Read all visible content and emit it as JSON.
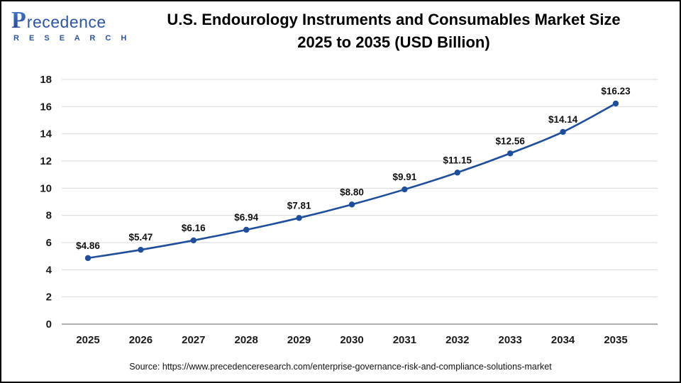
{
  "header": {
    "logo": {
      "p": "P",
      "rest": "recedence",
      "line2": "R E S E A R C H"
    },
    "title_line1": "U.S. Endourology Instruments and Consumables Market Size",
    "title_line2": "2025 to 2035 (USD Billion)"
  },
  "chart_data": {
    "type": "line",
    "title": "U.S. Endourology Instruments and Consumables Market Size 2025 to 2035 (USD Billion)",
    "categories": [
      "2025",
      "2026",
      "2027",
      "2028",
      "2029",
      "2030",
      "2031",
      "2032",
      "2033",
      "2034",
      "2035"
    ],
    "series": [
      {
        "name": "U.S. Endourology Instruments and Consumables Market Size (USD Billion)",
        "values": [
          4.86,
          5.47,
          6.16,
          6.94,
          7.81,
          8.8,
          9.91,
          11.15,
          12.56,
          14.14,
          16.23
        ]
      }
    ],
    "point_labels": [
      "$4.86",
      "$5.47",
      "$6.16",
      "$6.94",
      "$7.81",
      "$8.80",
      "$9.91",
      "$11.15",
      "$12.56",
      "$14.14",
      "$16.23"
    ],
    "xlabel": "",
    "ylabel": "",
    "ylim": [
      0,
      18
    ],
    "ytick_step": 2,
    "grid": true,
    "legend_position": "none",
    "line_color": "#1f4e9c",
    "grid_color": "#d9d9d9",
    "axis_color": "#7f7f7f",
    "tick_label_color": "#1a1a1a"
  },
  "footer": {
    "source": "Source: https://www.precedenceresearch.com/enterprise-governance-risk-and-compliance-solutions-market"
  }
}
